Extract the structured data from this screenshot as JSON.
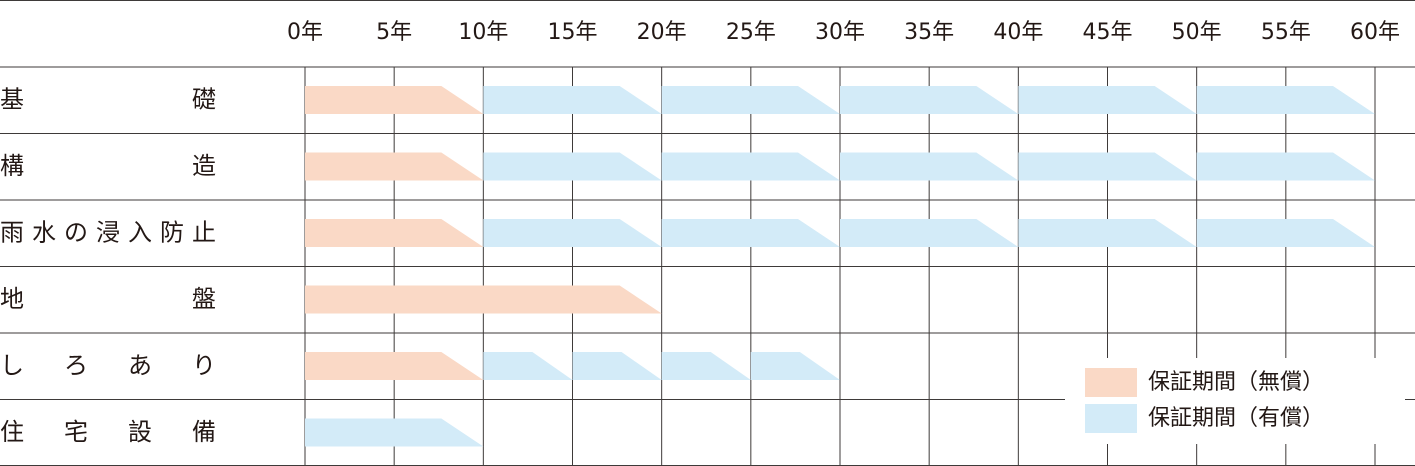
{
  "chart_data": {
    "type": "gantt",
    "categories": [
      "基礎",
      "構造",
      "雨水の浸入防止",
      "地盤",
      "しろあり",
      "住宅設備"
    ],
    "xlim": [
      0,
      60
    ],
    "xticks": [
      {
        "value": 0,
        "label": "0年"
      },
      {
        "value": 5,
        "label": "5年"
      },
      {
        "value": 10,
        "label": "10年"
      },
      {
        "value": 15,
        "label": "15年"
      },
      {
        "value": 20,
        "label": "20年"
      },
      {
        "value": 25,
        "label": "25年"
      },
      {
        "value": 30,
        "label": "30年"
      },
      {
        "value": 35,
        "label": "35年"
      },
      {
        "value": 40,
        "label": "40年"
      },
      {
        "value": 45,
        "label": "45年"
      },
      {
        "value": 50,
        "label": "50年"
      },
      {
        "value": 55,
        "label": "55年"
      },
      {
        "value": 60,
        "label": "60年"
      }
    ],
    "series": [
      {
        "name": "保証期間（無償）",
        "color": "#fad9c6",
        "values": [
          [
            10
          ],
          [
            10
          ],
          [
            10
          ],
          [
            20
          ],
          [
            10
          ],
          []
        ]
      },
      {
        "name": "保証期間（有償）",
        "color": "#d3ebf8",
        "values": [
          [
            10,
            10,
            10,
            10,
            10
          ],
          [
            10,
            10,
            10,
            10,
            10
          ],
          [
            10,
            10,
            10,
            10,
            10
          ],
          [],
          [
            5,
            5,
            5,
            5
          ],
          [
            10
          ]
        ]
      }
    ]
  }
}
